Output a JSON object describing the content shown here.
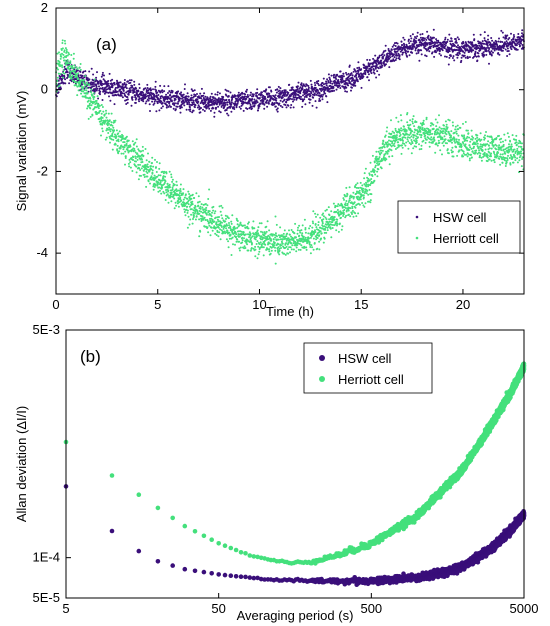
{
  "colors": {
    "hsw": "#3a0f7a",
    "herriott": "#44e07c"
  },
  "chart_data": [
    {
      "type": "scatter",
      "panel_label": "(a)",
      "xlabel": "Time (h)",
      "ylabel": "Signal variation (mV)",
      "xlim": [
        0,
        23
      ],
      "ylim": [
        -5,
        2
      ],
      "xticks": [
        0,
        5,
        10,
        15,
        20
      ],
      "yticks": [
        2,
        0,
        -2,
        -4
      ],
      "grid": false,
      "legend_position": "lower-right",
      "legend_marker": "small-dot",
      "series": [
        {
          "name": "HSW cell",
          "color": "#3a0f7a",
          "spread": 0.3,
          "x": [
            0,
            0.5,
            1,
            2,
            3,
            4,
            5,
            6,
            7,
            8,
            9,
            10,
            11,
            12,
            13,
            14,
            15,
            16,
            17,
            18,
            19,
            20,
            21,
            22,
            23
          ],
          "y": [
            0.0,
            0.5,
            0.3,
            0.1,
            0.0,
            -0.1,
            -0.2,
            -0.25,
            -0.3,
            -0.3,
            -0.3,
            -0.25,
            -0.2,
            -0.1,
            0.0,
            0.2,
            0.35,
            0.7,
            1.0,
            1.1,
            1.05,
            1.0,
            1.05,
            1.1,
            1.2
          ]
        },
        {
          "name": "Herriott cell",
          "color": "#44e07c",
          "spread": 0.45,
          "x": [
            0,
            0.3,
            0.7,
            1,
            1.5,
            2,
            3,
            4,
            5,
            6,
            7,
            8,
            9,
            10,
            11,
            12,
            13,
            14,
            15,
            15.5,
            16,
            16.5,
            17,
            18,
            19,
            20,
            21,
            22,
            23
          ],
          "y": [
            0.2,
            0.9,
            0.6,
            0.3,
            -0.1,
            -0.5,
            -1.2,
            -1.7,
            -2.2,
            -2.6,
            -3.0,
            -3.3,
            -3.55,
            -3.65,
            -3.75,
            -3.7,
            -3.45,
            -3.0,
            -2.6,
            -2.2,
            -1.5,
            -1.25,
            -1.1,
            -1.05,
            -1.1,
            -1.3,
            -1.45,
            -1.5,
            -1.45
          ]
        }
      ]
    },
    {
      "type": "scatter",
      "panel_label": "(b)",
      "xlabel": "Averaging period (s)",
      "ylabel": "Allan deviation (ΔI/I)",
      "xscale": "log",
      "yscale": "log",
      "xlim": [
        5,
        5000
      ],
      "ylim": [
        5e-05,
        0.005
      ],
      "xticks": [
        5,
        50,
        500,
        5000
      ],
      "xtick_labels": [
        "5",
        "50",
        "500",
        "5000"
      ],
      "yticks": [
        0.005,
        0.0001,
        5e-05
      ],
      "ytick_labels": [
        "5E-3",
        "1E-4",
        "5E-5"
      ],
      "grid": false,
      "legend_position": "top-right",
      "legend_marker": "dot",
      "series": [
        {
          "name": "HSW cell",
          "color": "#3a0f7a",
          "x": [
            5,
            10,
            15,
            20,
            30,
            50,
            100,
            200,
            500,
            1000,
            1500,
            2000,
            3000,
            4000,
            5000
          ],
          "y": [
            0.00034,
            0.000158,
            0.000112,
            9.4e-05,
            8.2e-05,
            7.5e-05,
            6.9e-05,
            6.7e-05,
            6.7e-05,
            7.1e-05,
            7.7e-05,
            8.7e-05,
            0.000115,
            0.000155,
            0.00021
          ]
        },
        {
          "name": "Herriott cell",
          "color": "#44e07c",
          "x": [
            5,
            10,
            15,
            20,
            30,
            50,
            80,
            100,
            150,
            200,
            300,
            500,
            1000,
            2000,
            3000,
            4000,
            5000
          ],
          "y": [
            0.00073,
            0.00041,
            0.000295,
            0.000235,
            0.000172,
            0.000128,
            0.000104,
            9.8e-05,
            9.1e-05,
            9.3e-05,
            0.000104,
            0.000127,
            0.000205,
            0.00046,
            0.00095,
            0.00163,
            0.00265
          ]
        }
      ]
    }
  ]
}
